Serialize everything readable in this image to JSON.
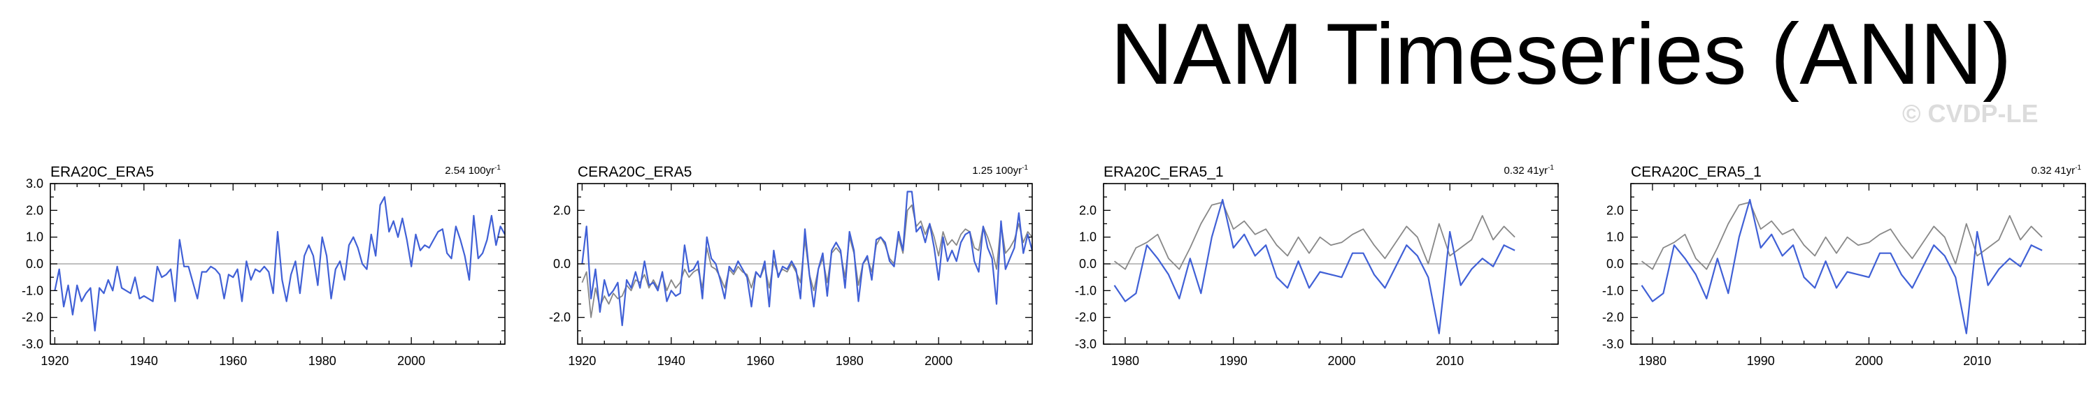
{
  "page": {
    "title": "NAM Timeseries (ANN)",
    "watermark": "© CVDP-LE"
  },
  "colors": {
    "primary": "#4060d6",
    "secondary": "#888888",
    "axis": "#000000",
    "zero_line": "#aaaaaa"
  },
  "chart_data": [
    {
      "type": "line",
      "title": "ERA20C_ERA5",
      "trend_label": "2.54 100yr",
      "trend_sup": "-1",
      "xlim": [
        1919,
        2021
      ],
      "ylim": [
        -3.0,
        3.0
      ],
      "xticks": [
        1920,
        1940,
        1960,
        1980,
        2000
      ],
      "yticks": [
        -3.0,
        -2.0,
        -1.0,
        0.0,
        1.0,
        2.0,
        3.0
      ],
      "ytick_labels": [
        "-3.0",
        "-2.0",
        "-1.0",
        "0.0",
        "1.0",
        "2.0",
        "3.0"
      ],
      "x_start": 1920,
      "series": [
        {
          "role": "primary",
          "values": [
            -1.0,
            -0.2,
            -1.6,
            -0.8,
            -1.9,
            -0.8,
            -1.4,
            -1.1,
            -0.9,
            -2.5,
            -0.9,
            -1.1,
            -0.6,
            -1.0,
            -0.1,
            -0.9,
            -1.0,
            -1.1,
            -0.5,
            -1.3,
            -1.2,
            -1.3,
            -1.4,
            -0.1,
            -0.5,
            -0.4,
            -0.2,
            -1.4,
            0.9,
            -0.1,
            -0.1,
            -0.7,
            -1.3,
            -0.3,
            -0.3,
            -0.1,
            -0.2,
            -0.4,
            -1.3,
            -0.4,
            -0.5,
            -0.2,
            -1.4,
            0.1,
            -0.6,
            -0.2,
            -0.3,
            -0.1,
            -0.3,
            -1.1,
            1.2,
            -0.6,
            -1.4,
            -0.4,
            0.1,
            -1.1,
            0.3,
            0.7,
            0.3,
            -0.8,
            1.0,
            0.3,
            -1.3,
            -0.2,
            0.1,
            -0.6,
            0.7,
            1.0,
            0.6,
            0.0,
            -0.2,
            1.1,
            0.3,
            2.2,
            2.5,
            1.2,
            1.6,
            1.0,
            1.7,
            0.9,
            -0.1,
            1.1,
            0.5,
            0.7,
            0.6,
            0.9,
            1.2,
            1.3,
            0.4,
            0.2,
            1.4,
            0.9,
            0.3,
            -0.6,
            1.8,
            0.2,
            0.4,
            0.9,
            1.8,
            0.7,
            1.4,
            1.1
          ]
        }
      ]
    },
    {
      "type": "line",
      "title": "CERA20C_ERA5",
      "trend_label": "1.25 100yr",
      "trend_sup": "-1",
      "xlim": [
        1919,
        2021
      ],
      "ylim": [
        -3.0,
        3.0
      ],
      "xticks": [
        1920,
        1940,
        1960,
        1980,
        2000
      ],
      "yticks": [
        -2.0,
        0.0,
        2.0
      ],
      "ytick_labels": [
        "-2.0",
        "0.0",
        "2.0"
      ],
      "x_start": 1920,
      "series": [
        {
          "role": "secondary",
          "values": [
            -0.7,
            -0.3,
            -2.0,
            -0.9,
            -1.6,
            -1.2,
            -1.5,
            -1.1,
            -1.3,
            -1.2,
            -0.8,
            -1.0,
            -0.6,
            -0.7,
            -0.4,
            -0.9,
            -0.6,
            -0.9,
            -0.4,
            -1.0,
            -0.6,
            -0.9,
            -0.7,
            -0.2,
            -0.5,
            -0.3,
            -0.2,
            -0.9,
            0.6,
            -0.1,
            -0.2,
            -0.5,
            -0.9,
            -0.2,
            -0.4,
            -0.1,
            -0.3,
            -0.4,
            -0.9,
            -0.3,
            -0.5,
            -0.1,
            -0.9,
            0.1,
            -0.4,
            -0.2,
            -0.3,
            0.0,
            -0.3,
            -0.7,
            0.9,
            -0.4,
            -1.0,
            -0.2,
            0.2,
            -0.7,
            0.4,
            0.6,
            0.4,
            -0.5,
            1.0,
            0.4,
            -0.8,
            0.0,
            0.2,
            -0.3,
            0.7,
            1.0,
            0.7,
            0.2,
            0.0,
            1.0,
            0.4,
            2.0,
            2.2,
            1.4,
            1.6,
            1.1,
            1.5,
            1.0,
            0.3,
            1.2,
            0.7,
            0.9,
            0.7,
            1.1,
            1.3,
            1.2,
            0.6,
            0.5,
            1.4,
            1.0,
            0.5,
            -0.2,
            1.5,
            0.4,
            0.6,
            0.9,
            1.5,
            0.8,
            1.2,
            1.0
          ]
        },
        {
          "role": "primary",
          "values": [
            0.0,
            1.4,
            -1.3,
            -0.2,
            -1.8,
            -0.6,
            -1.2,
            -1.0,
            -0.7,
            -2.3,
            -0.6,
            -0.9,
            -0.3,
            -0.9,
            0.1,
            -0.8,
            -0.7,
            -1.0,
            -0.3,
            -1.4,
            -1.0,
            -1.2,
            -1.1,
            0.7,
            -0.3,
            -0.2,
            0.1,
            -1.3,
            1.0,
            0.2,
            0.0,
            -0.6,
            -1.3,
            -0.1,
            -0.3,
            0.1,
            -0.2,
            -0.5,
            -1.6,
            -0.3,
            -0.5,
            0.1,
            -1.6,
            0.5,
            -0.5,
            -0.1,
            -0.2,
            0.1,
            -0.2,
            -1.3,
            1.3,
            -0.4,
            -1.6,
            -0.2,
            0.4,
            -1.2,
            0.5,
            0.8,
            0.5,
            -0.9,
            1.2,
            0.5,
            -1.4,
            0.0,
            0.3,
            -0.6,
            0.9,
            1.0,
            0.8,
            0.1,
            -0.1,
            1.2,
            0.5,
            2.7,
            2.7,
            1.2,
            1.4,
            0.8,
            1.5,
            0.6,
            -0.6,
            1.0,
            0.1,
            0.5,
            0.1,
            0.8,
            1.1,
            1.2,
            0.1,
            -0.3,
            1.4,
            0.6,
            0.2,
            -1.5,
            1.6,
            -0.2,
            0.2,
            0.6,
            1.9,
            0.4,
            1.1,
            0.5
          ]
        }
      ]
    },
    {
      "type": "line",
      "title": "ERA20C_ERA5_1",
      "trend_label": "0.32 41yr",
      "trend_sup": "-1",
      "xlim": [
        1978,
        2020
      ],
      "ylim": [
        -3.0,
        3.0
      ],
      "xticks": [
        1980,
        1990,
        2000,
        2010
      ],
      "yticks": [
        -3.0,
        -2.0,
        -1.0,
        0.0,
        1.0,
        2.0
      ],
      "ytick_labels": [
        "-3.0",
        "-2.0",
        "-1.0",
        "0.0",
        "1.0",
        "2.0"
      ],
      "x_start": 1979,
      "series": [
        {
          "role": "secondary",
          "values": [
            0.1,
            -0.2,
            0.6,
            0.8,
            1.1,
            0.2,
            -0.2,
            0.6,
            1.5,
            2.2,
            2.3,
            1.3,
            1.6,
            1.1,
            1.3,
            0.7,
            0.3,
            1.0,
            0.4,
            1.0,
            0.7,
            0.8,
            1.1,
            1.3,
            0.7,
            0.2,
            0.8,
            1.4,
            1.0,
            0.0,
            1.5,
            0.3,
            0.6,
            0.9,
            1.8,
            0.9,
            1.4,
            1.0
          ]
        },
        {
          "role": "primary",
          "values": [
            -0.8,
            -1.4,
            -1.1,
            0.7,
            0.2,
            -0.4,
            -1.3,
            0.2,
            -1.1,
            1.0,
            2.4,
            0.6,
            1.1,
            0.3,
            0.7,
            -0.5,
            -0.9,
            0.1,
            -0.9,
            -0.3,
            -0.4,
            -0.5,
            0.4,
            0.4,
            -0.4,
            -0.9,
            -0.1,
            0.7,
            0.3,
            -0.5,
            -2.6,
            1.2,
            -0.8,
            -0.2,
            0.2,
            -0.1,
            0.7,
            0.5
          ]
        }
      ]
    },
    {
      "type": "line",
      "title": "CERA20C_ERA5_1",
      "trend_label": "0.32 41yr",
      "trend_sup": "-1",
      "xlim": [
        1978,
        2020
      ],
      "ylim": [
        -3.0,
        3.0
      ],
      "xticks": [
        1980,
        1990,
        2000,
        2010
      ],
      "yticks": [
        -3.0,
        -2.0,
        -1.0,
        0.0,
        1.0,
        2.0
      ],
      "ytick_labels": [
        "-3.0",
        "-2.0",
        "-1.0",
        "0.0",
        "1.0",
        "2.0"
      ],
      "x_start": 1979,
      "series": [
        {
          "role": "secondary",
          "values": [
            0.1,
            -0.2,
            0.6,
            0.8,
            1.1,
            0.2,
            -0.2,
            0.6,
            1.5,
            2.2,
            2.3,
            1.3,
            1.6,
            1.1,
            1.3,
            0.7,
            0.3,
            1.0,
            0.4,
            1.0,
            0.7,
            0.8,
            1.1,
            1.3,
            0.7,
            0.2,
            0.8,
            1.4,
            1.0,
            0.0,
            1.5,
            0.3,
            0.6,
            0.9,
            1.8,
            0.9,
            1.4,
            1.0
          ]
        },
        {
          "role": "primary",
          "values": [
            -0.8,
            -1.4,
            -1.1,
            0.7,
            0.2,
            -0.4,
            -1.3,
            0.2,
            -1.1,
            1.0,
            2.4,
            0.6,
            1.1,
            0.3,
            0.7,
            -0.5,
            -0.9,
            0.1,
            -0.9,
            -0.3,
            -0.4,
            -0.5,
            0.4,
            0.4,
            -0.4,
            -0.9,
            -0.1,
            0.7,
            0.3,
            -0.5,
            -2.6,
            1.2,
            -0.8,
            -0.2,
            0.2,
            -0.1,
            0.7,
            0.5
          ]
        }
      ]
    }
  ]
}
